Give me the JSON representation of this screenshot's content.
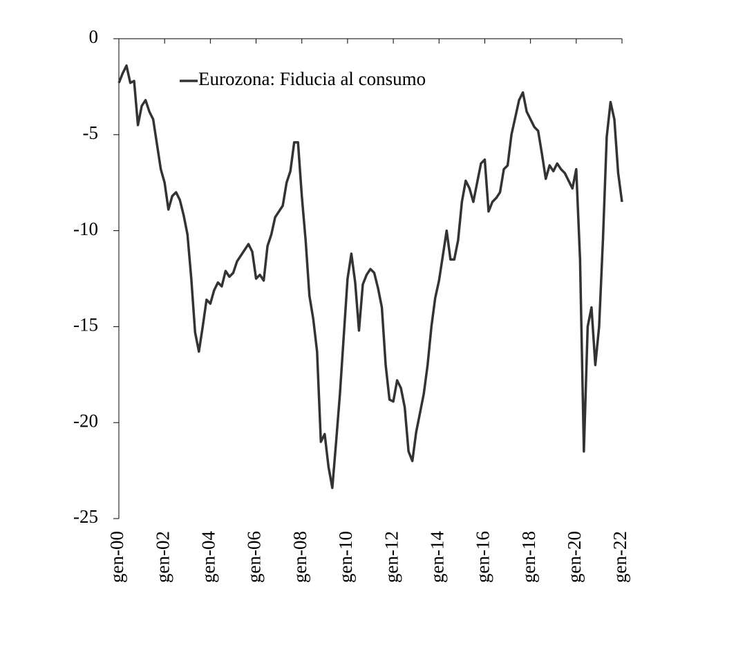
{
  "chart_data": {
    "type": "line",
    "categories": [
      "gen-00",
      null,
      null,
      null,
      null,
      null,
      null,
      null,
      null,
      null,
      null,
      null,
      "gen-02",
      null,
      null,
      null,
      null,
      null,
      null,
      null,
      null,
      null,
      null,
      null,
      "gen-04",
      null,
      null,
      null,
      null,
      null,
      null,
      null,
      null,
      null,
      null,
      null,
      "gen-06",
      null,
      null,
      null,
      null,
      null,
      null,
      null,
      null,
      null,
      null,
      null,
      "gen-08",
      null,
      null,
      null,
      null,
      null,
      null,
      null,
      null,
      null,
      null,
      null,
      "gen-10",
      null,
      null,
      null,
      null,
      null,
      null,
      null,
      null,
      null,
      null,
      null,
      "gen-12",
      null,
      null,
      null,
      null,
      null,
      null,
      null,
      null,
      null,
      null,
      null,
      "gen-14",
      null,
      null,
      null,
      null,
      null,
      null,
      null,
      null,
      null,
      null,
      null,
      "gen-16",
      null,
      null,
      null,
      null,
      null,
      null,
      null,
      null,
      null,
      null,
      null,
      "gen-18",
      null,
      null,
      null,
      null,
      null,
      null,
      null,
      null,
      null,
      null,
      null,
      "gen-20",
      null,
      null,
      null,
      null,
      null,
      null,
      null,
      null,
      null,
      null,
      null,
      "gen-22"
    ],
    "series": [
      {
        "name": "Eurozona: Fiducia al consumo",
        "color": "#333333",
        "values": [
          -2.3,
          -1.8,
          -1.4,
          -2.3,
          -2.2,
          -4.5,
          -3.5,
          -3.2,
          -3.8,
          -4.2,
          -5.5,
          -6.8,
          -7.5,
          -8.9,
          -8.2,
          -8.0,
          -8.4,
          -9.2,
          -10.2,
          -12.5,
          -15.3,
          -16.3,
          -15.0,
          -13.6,
          -13.8,
          -13.1,
          -12.7,
          -12.9,
          -12.1,
          -12.4,
          -12.2,
          -11.6,
          -11.3,
          -11.0,
          -10.7,
          -11.1,
          -12.5,
          -12.3,
          -12.6,
          -10.8,
          -10.2,
          -9.3,
          -9.0,
          -8.7,
          -7.5,
          -6.9,
          -5.4,
          -5.4,
          -8.2,
          -10.5,
          -13.4,
          -14.6,
          -16.3,
          -21.0,
          -20.6,
          -22.3,
          -23.4,
          -21.0,
          -18.5,
          -15.5,
          -12.5,
          -11.2,
          -12.7,
          -15.2,
          -12.8,
          -12.3,
          -12.0,
          -12.2,
          -13.0,
          -14.0,
          -17.0,
          -18.8,
          -18.9,
          -17.8,
          -18.2,
          -19.2,
          -21.5,
          -22.0,
          -20.5,
          -19.5,
          -18.5,
          -17.0,
          -15.0,
          -13.5,
          -12.6,
          -11.3,
          -10.0,
          -11.5,
          -11.5,
          -10.5,
          -8.5,
          -7.4,
          -7.8,
          -8.5,
          -7.5,
          -6.5,
          -6.3,
          -9.0,
          -8.5,
          -8.3,
          -8.0,
          -6.8,
          -6.6,
          -5.0,
          -4.1,
          -3.2,
          -2.8,
          -3.8,
          -4.2,
          -4.6,
          -4.8,
          -6.0,
          -7.3,
          -6.6,
          -6.9,
          -6.5,
          -6.8,
          -7.0,
          -7.4,
          -7.8,
          -6.8,
          -11.5,
          -21.5,
          -15.0,
          -14.0,
          -17.0,
          -15.0,
          -10.5,
          -5.1,
          -3.3,
          -4.2,
          -7.0,
          -8.5
        ]
      }
    ],
    "ylim": [
      -25,
      0
    ],
    "yticks": [
      0,
      -5,
      -10,
      -15,
      -20,
      -25
    ]
  }
}
